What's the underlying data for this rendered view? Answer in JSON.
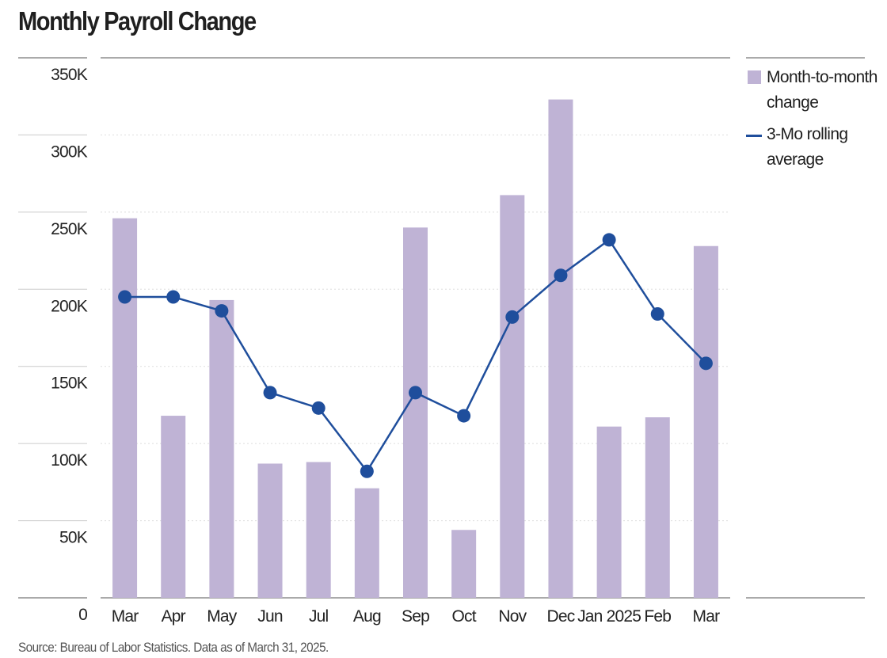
{
  "chart_data": {
    "type": "bar",
    "title": "Monthly Payroll Change",
    "source": "Source: Bureau of Labor Statistics. Data as of March 31, 2025.",
    "categories": [
      "Mar",
      "Apr",
      "May",
      "Jun",
      "Jul",
      "Aug",
      "Sep",
      "Oct",
      "Nov",
      "Dec",
      "Jan 2025",
      "Feb",
      "Mar"
    ],
    "series": [
      {
        "name": "Month-to-month change",
        "type": "bar",
        "color": "#bfb3d5",
        "values": [
          246,
          118,
          193,
          87,
          88,
          71,
          240,
          44,
          261,
          323,
          111,
          117,
          228
        ]
      },
      {
        "name": "3-Mo rolling average",
        "type": "line",
        "color": "#1f4e9c",
        "values": [
          195,
          195,
          186,
          133,
          123,
          82,
          133,
          118,
          182,
          209,
          232,
          184,
          152
        ]
      }
    ],
    "legend": [
      "Month-to-month change",
      "3-Mo rolling average"
    ],
    "legend_placement": "right",
    "y_ticks": [
      0,
      50,
      100,
      150,
      200,
      250,
      300,
      350
    ],
    "y_tick_labels": [
      "0",
      "50K",
      "100K",
      "150K",
      "200K",
      "250K",
      "300K",
      "350K"
    ],
    "units": "thousands",
    "ylim": [
      0,
      350
    ],
    "grid": true
  }
}
